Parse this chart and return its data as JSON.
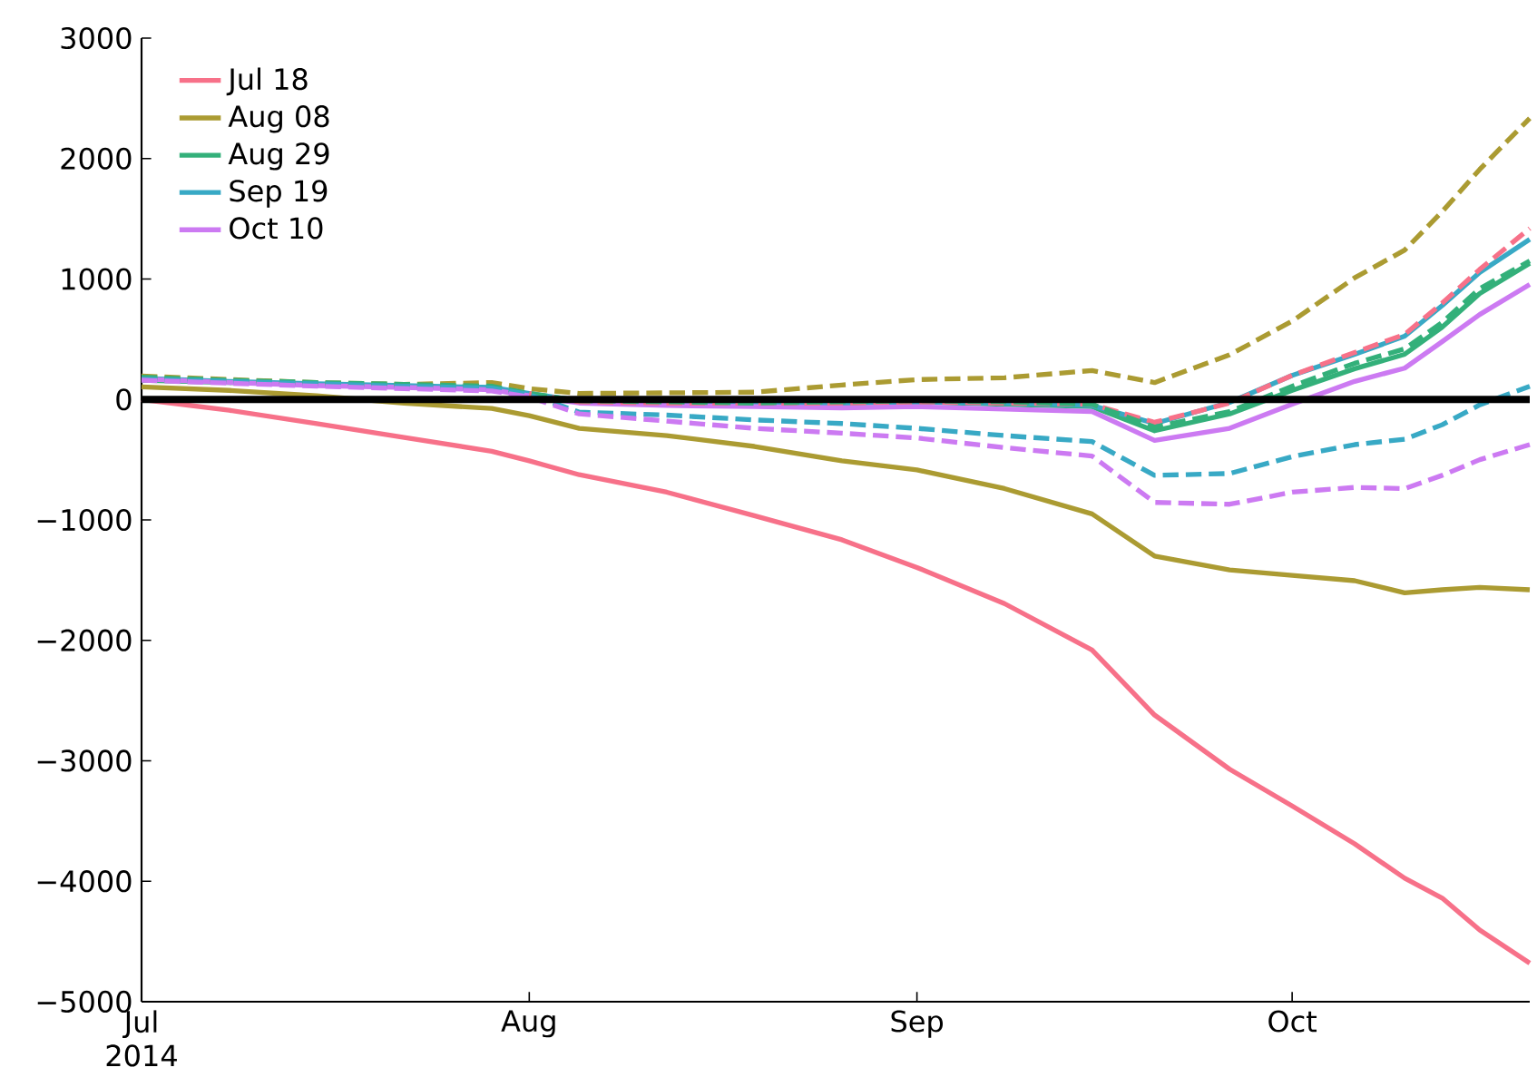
{
  "chart_data": {
    "type": "line",
    "x": [
      "2014-07-01",
      "2014-07-08",
      "2014-07-15",
      "2014-07-22",
      "2014-07-29",
      "2014-08-01",
      "2014-08-05",
      "2014-08-12",
      "2014-08-19",
      "2014-08-26",
      "2014-09-01",
      "2014-09-08",
      "2014-09-15",
      "2014-09-20",
      "2014-09-26",
      "2014-10-01",
      "2014-10-06",
      "2014-10-10",
      "2014-10-13",
      "2014-10-16",
      "2014-10-20"
    ],
    "series": [
      {
        "name": "Jul 18",
        "color": "#f77189",
        "line_style": "solid",
        "values": [
          0,
          -90,
          -200,
          -315,
          -430,
          -510,
          -625,
          -770,
          -965,
          -1165,
          -1395,
          -1695,
          -2080,
          -2620,
          -3070,
          -3375,
          -3690,
          -3975,
          -4140,
          -4405,
          -4680
        ]
      },
      {
        "name": "Aug 08",
        "color": "#ab9b32",
        "line_style": "solid",
        "values": [
          105,
          75,
          30,
          -30,
          -75,
          -135,
          -240,
          -300,
          -390,
          -510,
          -585,
          -740,
          -950,
          -1300,
          -1415,
          -1460,
          -1505,
          -1605,
          -1580,
          -1560,
          -1580
        ]
      },
      {
        "name": "Aug 29",
        "color": "#33b07a",
        "line_style": "solid",
        "values": [
          160,
          140,
          125,
          110,
          90,
          40,
          -20,
          -30,
          -40,
          -30,
          -20,
          -40,
          -60,
          -260,
          -120,
          75,
          255,
          375,
          600,
          880,
          1130
        ]
      },
      {
        "name": "Sep 19",
        "color": "#38a9c5",
        "line_style": "solid",
        "values": [
          175,
          150,
          130,
          115,
          100,
          50,
          -10,
          -20,
          -30,
          -30,
          -20,
          -30,
          -50,
          -200,
          -25,
          200,
          375,
          525,
          780,
          1055,
          1330
        ]
      },
      {
        "name": "Oct 10",
        "color": "#cc7af2",
        "line_style": "solid",
        "values": [
          170,
          140,
          115,
          100,
          80,
          30,
          -30,
          -50,
          -60,
          -70,
          -60,
          -80,
          -100,
          -340,
          -240,
          -40,
          150,
          260,
          480,
          705,
          955
        ]
      },
      {
        "color": "#f77189",
        "line_style": "dashed",
        "values": [
          null,
          null,
          null,
          null,
          null,
          50,
          -20,
          -30,
          -30,
          -30,
          -20,
          -30,
          -40,
          -190,
          -30,
          200,
          390,
          540,
          800,
          1080,
          1420
        ]
      },
      {
        "color": "#ab9b32",
        "line_style": "dashed",
        "values": [
          195,
          165,
          140,
          125,
          140,
          90,
          50,
          55,
          60,
          120,
          165,
          180,
          240,
          140,
          370,
          650,
          1010,
          1240,
          1560,
          1910,
          2335
        ]
      },
      {
        "color": "#33b07a",
        "line_style": "dashed",
        "values": [
          185,
          160,
          140,
          125,
          110,
          50,
          -10,
          -20,
          -30,
          -20,
          -10,
          -20,
          -40,
          -230,
          -100,
          110,
          300,
          420,
          640,
          920,
          1150
        ]
      },
      {
        "color": "#38a9c5",
        "line_style": "dashed",
        "values": [
          170,
          150,
          130,
          110,
          95,
          40,
          -105,
          -130,
          -170,
          -200,
          -240,
          -300,
          -350,
          -630,
          -615,
          -475,
          -375,
          -330,
          -210,
          -45,
          110
        ]
      },
      {
        "color": "#cc7af2",
        "line_style": "dashed",
        "values": [
          160,
          135,
          110,
          90,
          70,
          20,
          -120,
          -180,
          -240,
          -280,
          -320,
          -400,
          -470,
          -855,
          -870,
          -770,
          -730,
          -740,
          -630,
          -500,
          -375
        ]
      }
    ],
    "xlim": [
      "2014-07-01",
      "2014-10-20"
    ],
    "xticks": [
      {
        "value": "2014-07-01",
        "label": "Jul 2014"
      },
      {
        "value": "2014-08-01",
        "label": "Aug"
      },
      {
        "value": "2014-09-01",
        "label": "Sep"
      },
      {
        "value": "2014-10-01",
        "label": "Oct"
      }
    ],
    "ylim": [
      -5000,
      3000
    ],
    "yticks": [
      {
        "value": -5000,
        "label": "−5000"
      },
      {
        "value": -4000,
        "label": "−4000"
      },
      {
        "value": -3000,
        "label": "−3000"
      },
      {
        "value": -2000,
        "label": "−2000"
      },
      {
        "value": -1000,
        "label": "−1000"
      },
      0,
      1000,
      2000,
      3000
    ],
    "ref_lines": [
      {
        "axis": "y",
        "value": 0,
        "color": "#000000"
      }
    ],
    "legend": "top left",
    "marker": "none"
  }
}
